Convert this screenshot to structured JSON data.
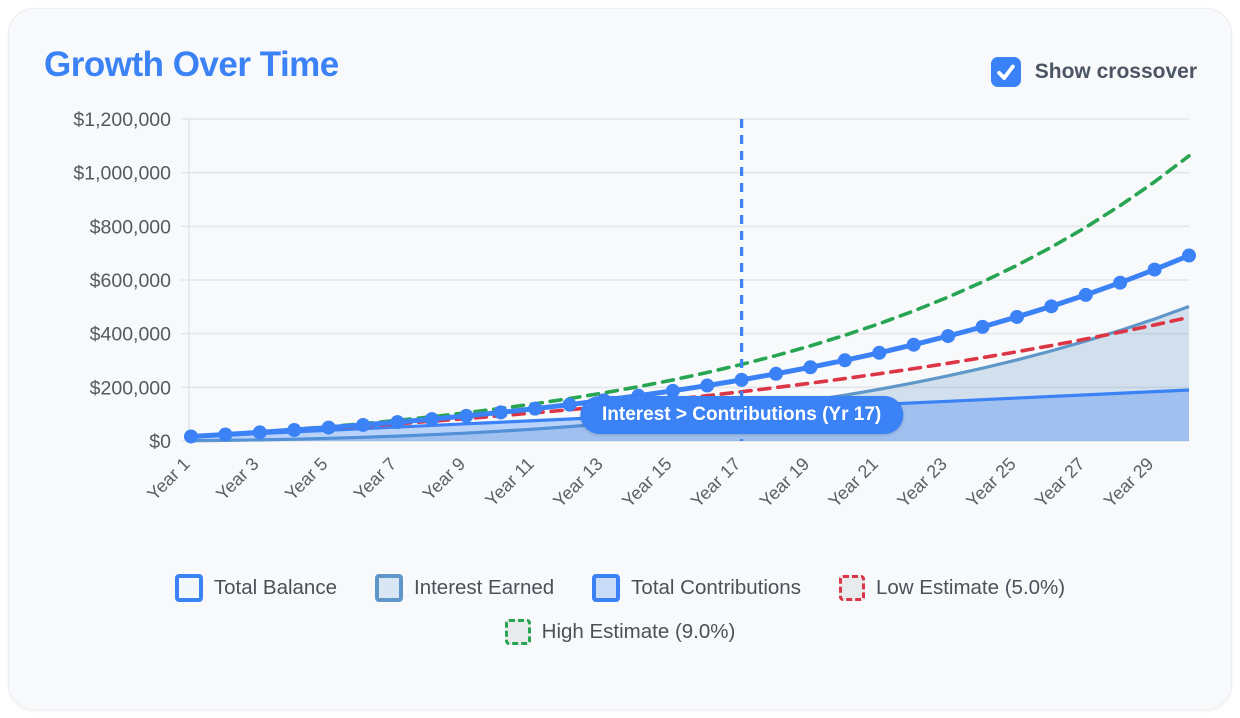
{
  "header": {
    "title": "Growth Over Time",
    "crossover_toggle": {
      "label": "Show crossover",
      "checked": true
    }
  },
  "colors": {
    "accent_blue": "#3b82f6",
    "steel_blue": "#5f97c8",
    "estimate_red": "#dc3545",
    "estimate_green": "#28a552",
    "grid": "#e3e6ea",
    "axis_text": "#54595f",
    "card_bg": "#f8f9fb"
  },
  "chart_data": {
    "type": "line",
    "title": "Growth Over Time",
    "x": [
      1,
      2,
      3,
      4,
      5,
      6,
      7,
      8,
      9,
      10,
      11,
      12,
      13,
      14,
      15,
      16,
      17,
      18,
      19,
      20,
      21,
      22,
      23,
      24,
      25,
      26,
      27,
      28,
      29,
      30
    ],
    "x_tick_step": 2,
    "x_tick_labels": [
      "Year 1",
      "Year 3",
      "Year 5",
      "Year 7",
      "Year 9",
      "Year 11",
      "Year 13",
      "Year 15",
      "Year 17",
      "Year 19",
      "Year 21",
      "Year 23",
      "Year 25",
      "Year 27",
      "Year 29"
    ],
    "ylim": [
      0,
      1200000
    ],
    "y_tick_values": [
      0,
      200000,
      400000,
      600000,
      800000,
      1000000,
      1200000
    ],
    "y_tick_labels": [
      "$0",
      "$200,000",
      "$400,000",
      "$600,000",
      "$800,000",
      "$1,000,000",
      "$1,200,000"
    ],
    "grid": "horizontal",
    "legend_position": "bottom",
    "series": [
      {
        "name": "Total Balance",
        "style": "line-markers",
        "color": "#3b82f6",
        "values": [
          16919,
          24339,
          32295,
          40827,
          49973,
          59783,
          70301,
          81578,
          93672,
          106639,
          120544,
          135454,
          151443,
          168587,
          186972,
          206684,
          227820,
          250486,
          274790,
          300851,
          328796,
          358761,
          390890,
          425343,
          462290,
          501906,
          544385,
          589934,
          638776,
          691149
        ]
      },
      {
        "name": "Interest Earned",
        "style": "area",
        "color": "#5f97c8",
        "fill": "rgba(95,151,200,0.25)",
        "values": [
          919,
          2339,
          4295,
          6827,
          9973,
          13783,
          18301,
          23578,
          29672,
          36639,
          44544,
          53454,
          63443,
          74587,
          86972,
          100684,
          115820,
          132486,
          150790,
          170851,
          192796,
          216761,
          242890,
          271343,
          302290,
          335906,
          372385,
          411934,
          454776,
          501149
        ]
      },
      {
        "name": "Total Contributions",
        "style": "area",
        "color": "#3b82f6",
        "fill": "rgba(59,130,246,0.33)",
        "values": [
          16000,
          22000,
          28000,
          34000,
          40000,
          46000,
          52000,
          58000,
          64000,
          70000,
          76000,
          82000,
          88000,
          94000,
          100000,
          106000,
          112000,
          118000,
          124000,
          130000,
          136000,
          142000,
          148000,
          154000,
          160000,
          166000,
          172000,
          178000,
          184000,
          190000
        ]
      },
      {
        "name": "Low Estimate (5.0%)",
        "style": "dashed",
        "color": "#dc3545",
        "values": [
          16651,
          23642,
          30991,
          38716,
          46837,
          55372,
          64345,
          73776,
          83690,
          94111,
          105066,
          116580,
          128684,
          141407,
          154781,
          168840,
          183617,
          199151,
          215480,
          232643,
          250684,
          269649,
          289585,
          310540,
          332567,
          355721,
          380060,
          405644,
          432537,
          460805
        ]
      },
      {
        "name": "High Estimate (9.0%)",
        "style": "dashed",
        "color": "#28a552",
        "values": [
          17192,
          25058,
          33663,
          43074,
          53369,
          64629,
          76945,
          90417,
          105153,
          121271,
          138900,
          158184,
          179277,
          202348,
          227583,
          255186,
          285378,
          318402,
          354524,
          394035,
          437252,
          484523,
          536228,
          592784,
          654645,
          722309,
          796321,
          877275,
          965823,
          1062678
        ]
      }
    ],
    "annotation": {
      "crossover_year": 17,
      "label": "Interest > Contributions (Yr 17)",
      "line_color": "#3b82f6"
    },
    "legend": [
      {
        "label": "Total Balance",
        "border": "#3b82f6",
        "fill": "#f3f7fe",
        "dashed": false
      },
      {
        "label": "Interest Earned",
        "border": "#5f97c8",
        "fill": "#d9e6f4",
        "dashed": false
      },
      {
        "label": "Total Contributions",
        "border": "#3b82f6",
        "fill": "#c9dcf8",
        "dashed": false
      },
      {
        "label": "Low Estimate (5.0%)",
        "border": "#dc3545",
        "fill": "#e9eaeb",
        "dashed": true
      },
      {
        "label": "High Estimate (9.0%)",
        "border": "#28a552",
        "fill": "#e9eaeb",
        "dashed": true
      }
    ]
  }
}
